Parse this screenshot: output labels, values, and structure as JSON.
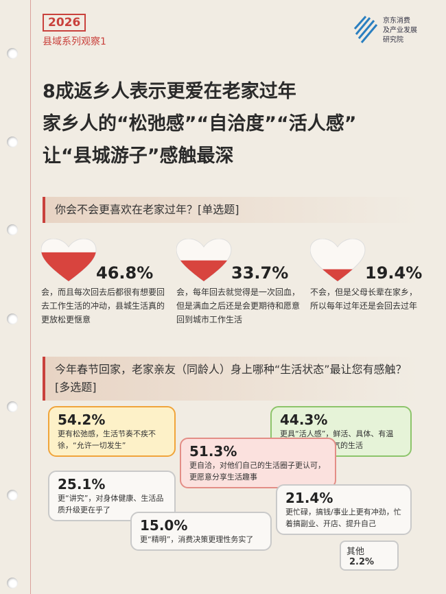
{
  "header": {
    "year": "2026",
    "series": "县域系列观察1",
    "org": [
      "京东消费",
      "及产业发展",
      "研究院"
    ]
  },
  "title": [
    "8成返乡人表示更爱在老家过年",
    "家乡人的“松弛感”“自洽度”“活人感”",
    "让“县城游子”感触最深"
  ],
  "q1": {
    "question": "你会不会更喜欢在老家过年？[单选题]",
    "options": [
      {
        "value": 46.8,
        "value_label": "46.8%",
        "text": "会，而且每次回去后都很有想要回去工作生活的冲动，县城生活真的更放松更惬意"
      },
      {
        "value": 33.7,
        "value_label": "33.7%",
        "text": "会，每年回去就觉得是一次回血，但是满血之后还是会更期待和愿意回到城市工作生活"
      },
      {
        "value": 19.4,
        "value_label": "19.4%",
        "text": "不会，但是父母长辈在家乡，所以每年过年还是会回去过年"
      }
    ]
  },
  "q2": {
    "question": "今年春节回家，老家亲友（同龄人）身上哪种“生活状态”最让您有感触？[多选题]",
    "options": [
      {
        "percent": "54.2%",
        "text": "更有松弛感，生活节奏不疾不徐，“允许一切发生”"
      },
      {
        "percent": "44.3%",
        "text": "更具“活人感”，鲜活、具体、有温度，关注有烟火气的生活"
      },
      {
        "percent": "51.3%",
        "text": "更自洽，对他们自己的生活圈子更认可，更愿意分享生活趣事"
      },
      {
        "percent": "25.1%",
        "text": "更“讲究”，对身体健康、生活品质升级更在乎了"
      },
      {
        "percent": "21.4%",
        "text": "更忙碌，搞钱/事业上更有冲劲，忙着搞副业、开店、提升自己"
      },
      {
        "percent": "15.0%",
        "text": "更“精明”，消费决策更理性务实了"
      }
    ],
    "other": {
      "label": "其他",
      "percent": "2.2%"
    }
  }
}
